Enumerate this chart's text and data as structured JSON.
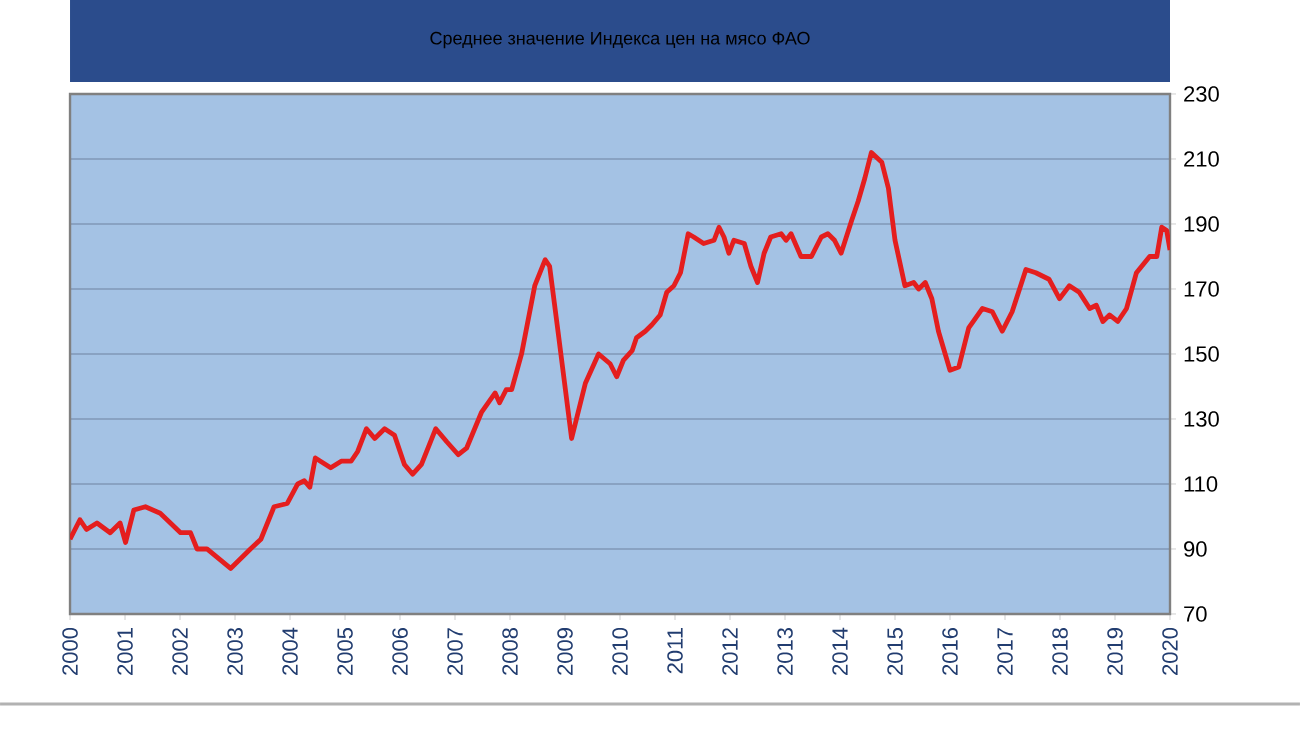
{
  "chart_data": {
    "type": "line",
    "title": "Среднее значение Индекса цен на мясо ФАО",
    "x": [
      2000.0,
      2000.18,
      2000.3,
      2000.49,
      2000.73,
      2000.91,
      2001.01,
      2001.16,
      2001.37,
      2001.64,
      2002.01,
      2002.19,
      2002.31,
      2002.49,
      2002.92,
      2003.28,
      2003.47,
      2003.71,
      2003.95,
      2004.14,
      2004.26,
      2004.36,
      2004.46,
      2004.74,
      2004.93,
      2005.11,
      2005.23,
      2005.39,
      2005.54,
      2005.72,
      2005.9,
      2006.08,
      2006.23,
      2006.39,
      2006.65,
      2006.85,
      2007.06,
      2007.21,
      2007.48,
      2007.73,
      2007.81,
      2007.93,
      2008.03,
      2008.21,
      2008.45,
      2008.64,
      2008.72,
      2008.88,
      2009.12,
      2009.37,
      2009.61,
      2009.82,
      2009.94,
      2010.06,
      2010.22,
      2010.3,
      2010.46,
      2010.58,
      2010.73,
      2010.85,
      2010.98,
      2011.1,
      2011.24,
      2011.34,
      2011.52,
      2011.71,
      2011.8,
      2011.89,
      2011.98,
      2012.07,
      2012.26,
      2012.38,
      2012.5,
      2012.62,
      2012.74,
      2012.93,
      2013.02,
      2013.11,
      2013.29,
      2013.48,
      2013.66,
      2013.78,
      2013.9,
      2014.02,
      2014.21,
      2014.33,
      2014.45,
      2014.57,
      2014.76,
      2014.88,
      2015.0,
      2015.18,
      2015.34,
      2015.43,
      2015.55,
      2015.67,
      2015.79,
      2016.0,
      2016.16,
      2016.34,
      2016.59,
      2016.77,
      2016.95,
      2017.13,
      2017.38,
      2017.56,
      2017.8,
      2017.99,
      2018.17,
      2018.35,
      2018.54,
      2018.66,
      2018.78,
      2018.9,
      2019.05,
      2019.21,
      2019.39,
      2019.63,
      2019.76,
      2019.85,
      2019.94,
      2020.0
    ],
    "series": [
      {
        "color": "#e41e1e",
        "values": [
          93,
          99,
          96,
          98,
          95,
          98,
          92,
          102,
          103,
          101,
          95,
          95,
          90,
          90,
          84,
          90,
          93,
          103,
          104,
          110,
          111,
          109,
          118,
          115,
          117,
          117,
          120,
          127,
          124,
          127,
          125,
          116,
          113,
          116,
          127,
          123,
          119,
          121,
          132,
          138,
          135,
          139,
          139,
          150,
          171,
          179,
          177,
          156,
          124,
          141,
          150,
          147,
          143,
          148,
          151,
          155,
          157,
          159,
          162,
          169,
          171,
          175,
          187,
          186,
          184,
          185,
          189,
          186,
          181,
          185,
          184,
          177,
          172,
          181,
          186,
          187,
          185,
          187,
          180,
          180,
          186,
          187,
          185,
          181,
          191,
          197,
          204,
          212,
          209,
          201,
          185,
          171,
          172,
          170,
          172,
          167,
          157,
          145,
          146,
          158,
          164,
          163,
          157,
          163,
          176,
          175,
          173,
          167,
          171,
          169,
          164,
          165,
          160,
          162,
          160,
          164,
          175,
          180,
          180,
          189,
          188,
          182
        ]
      }
    ],
    "xlim": [
      2000,
      2020
    ],
    "xticks": [
      2000,
      2001,
      2002,
      2003,
      2004,
      2005,
      2006,
      2007,
      2008,
      2009,
      2010,
      2011,
      2012,
      2013,
      2014,
      2015,
      2016,
      2017,
      2018,
      2019,
      2020
    ],
    "ylim": [
      70,
      230
    ],
    "yticks": [
      70,
      90,
      110,
      130,
      150,
      170,
      190,
      210,
      230
    ],
    "grid": "y",
    "marker": "none",
    "line_style": "solid"
  }
}
